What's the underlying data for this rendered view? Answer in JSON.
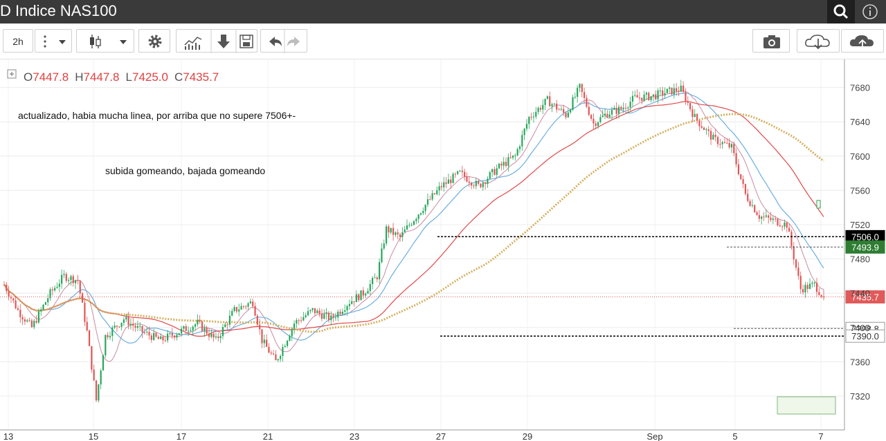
{
  "header": {
    "title": "D Indice NAS100"
  },
  "toolbar": {
    "interval_label": "2h",
    "icons": [
      "more-vertical-icon",
      "dropdown-icon",
      "candlestick-icon",
      "dropdown-icon",
      "settings-gear-icon",
      "indicators-icon",
      "download-arrow-icon",
      "save-icon",
      "undo-icon",
      "redo-icon",
      "camera-icon",
      "cloud-download-icon",
      "cloud-upload-icon"
    ]
  },
  "ohlc": {
    "o_label": "O",
    "o": "7447.8",
    "h_label": "H",
    "h": "7447.8",
    "l_label": "L",
    "l": "7425.0",
    "c_label": "C",
    "c": "7435.7"
  },
  "annotations": {
    "note1": "actualizado, habia mucha linea, por arriba que no supere 7506+-",
    "note2": "subida gomeando, bajada gomeando"
  },
  "price_tags": [
    {
      "text": "7506.0",
      "color": "#000000"
    },
    {
      "text": "7493.9",
      "color": "#2e7d32"
    },
    {
      "text": "7435.7",
      "color": "#e05a5a"
    },
    {
      "text": "7398.8",
      "color": "#ffffff",
      "text_color": "#333333"
    },
    {
      "text": "7390.0",
      "color": "#ffffff",
      "text_color": "#333333"
    }
  ],
  "colors": {
    "up": "#26a65b",
    "down": "#e05555",
    "trend_blue": "#1f1fd0",
    "trend_red": "#e01e1e",
    "ma_gold": "#d4b060"
  },
  "chart_data": {
    "type": "candlestick",
    "ylim": [
      7300,
      7710
    ],
    "y_ticks": [
      7320,
      7360,
      7400,
      7440,
      7480,
      7520,
      7560,
      7600,
      7640,
      7680
    ],
    "x_labels": [
      "13",
      "15",
      "17",
      "21",
      "23",
      "27",
      "29",
      "Sep",
      "5",
      "7"
    ],
    "candles_sample_start": "13",
    "last_close": 7435.7,
    "horizontal_levels": [
      7506.0,
      7493.9,
      7398.8,
      7390.0
    ],
    "series": [
      {
        "name": "price",
        "keypoints": [
          [
            0,
            7450
          ],
          [
            6,
            7420
          ],
          [
            12,
            7400
          ],
          [
            20,
            7440
          ],
          [
            26,
            7460
          ],
          [
            32,
            7455
          ],
          [
            36,
            7395
          ],
          [
            40,
            7315
          ],
          [
            44,
            7390
          ],
          [
            52,
            7410
          ],
          [
            60,
            7395
          ],
          [
            68,
            7385
          ],
          [
            76,
            7395
          ],
          [
            84,
            7405
          ],
          [
            92,
            7385
          ],
          [
            100,
            7420
          ],
          [
            108,
            7430
          ],
          [
            112,
            7385
          ],
          [
            118,
            7360
          ],
          [
            126,
            7405
          ],
          [
            134,
            7420
          ],
          [
            142,
            7410
          ],
          [
            150,
            7430
          ],
          [
            156,
            7440
          ],
          [
            162,
            7460
          ],
          [
            166,
            7515
          ],
          [
            172,
            7505
          ],
          [
            176,
            7520
          ],
          [
            182,
            7540
          ],
          [
            190,
            7565
          ],
          [
            198,
            7580
          ],
          [
            206,
            7565
          ],
          [
            214,
            7585
          ],
          [
            222,
            7600
          ],
          [
            228,
            7645
          ],
          [
            236,
            7665
          ],
          [
            244,
            7648
          ],
          [
            250,
            7680
          ],
          [
            256,
            7638
          ],
          [
            262,
            7650
          ],
          [
            268,
            7655
          ],
          [
            274,
            7668
          ],
          [
            282,
            7670
          ],
          [
            288,
            7675
          ],
          [
            294,
            7678
          ],
          [
            300,
            7645
          ],
          [
            308,
            7620
          ],
          [
            316,
            7610
          ],
          [
            322,
            7555
          ],
          [
            328,
            7530
          ],
          [
            334,
            7525
          ],
          [
            340,
            7520
          ],
          [
            346,
            7445
          ],
          [
            352,
            7450
          ],
          [
            356,
            7435
          ]
        ]
      }
    ]
  }
}
